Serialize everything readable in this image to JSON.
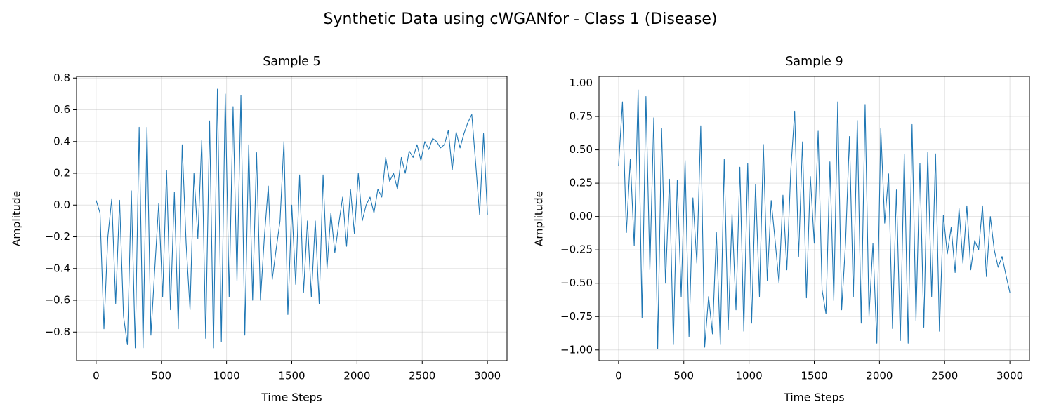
{
  "title": "Synthetic Data using cWGANfor - Class 1 (Disease)",
  "chart_data": [
    {
      "type": "line",
      "title": "Sample 5",
      "xlabel": "Time Steps",
      "ylabel": "Amplitude",
      "grid": true,
      "xlim": [
        -150,
        3150
      ],
      "ylim": [
        -0.98,
        0.81
      ],
      "xticks": [
        0,
        500,
        1000,
        1500,
        2000,
        2500,
        3000
      ],
      "yticks": [
        {
          "value": -0.8,
          "label": "−0.8"
        },
        {
          "value": -0.6,
          "label": "−0.6"
        },
        {
          "value": -0.4,
          "label": "−0.4"
        },
        {
          "value": -0.2,
          "label": "−0.2"
        },
        {
          "value": 0.0,
          "label": "0.0"
        },
        {
          "value": 0.2,
          "label": "0.2"
        },
        {
          "value": 0.4,
          "label": "0.4"
        },
        {
          "value": 0.6,
          "label": "0.6"
        },
        {
          "value": 0.8,
          "label": "0.8"
        }
      ],
      "x": [
        0,
        30,
        60,
        90,
        120,
        150,
        180,
        210,
        240,
        270,
        300,
        330,
        360,
        390,
        420,
        450,
        480,
        510,
        540,
        570,
        600,
        630,
        660,
        690,
        720,
        750,
        780,
        810,
        840,
        870,
        900,
        930,
        960,
        990,
        1020,
        1050,
        1080,
        1110,
        1140,
        1170,
        1200,
        1230,
        1260,
        1290,
        1320,
        1350,
        1380,
        1410,
        1440,
        1470,
        1500,
        1530,
        1560,
        1590,
        1620,
        1650,
        1680,
        1710,
        1740,
        1770,
        1800,
        1830,
        1860,
        1890,
        1920,
        1950,
        1980,
        2010,
        2040,
        2070,
        2100,
        2130,
        2160,
        2190,
        2220,
        2250,
        2280,
        2310,
        2340,
        2370,
        2400,
        2430,
        2460,
        2490,
        2520,
        2550,
        2580,
        2610,
        2640,
        2670,
        2700,
        2730,
        2760,
        2790,
        2820,
        2850,
        2880,
        2910,
        2940,
        2970,
        3000
      ],
      "series": [
        {
          "color": "#1f77b4",
          "values": [
            0.03,
            -0.05,
            -0.78,
            -0.2,
            0.04,
            -0.62,
            0.03,
            -0.7,
            -0.88,
            0.09,
            -0.9,
            0.49,
            -0.9,
            0.49,
            -0.82,
            -0.4,
            0.01,
            -0.58,
            0.22,
            -0.66,
            0.08,
            -0.78,
            0.38,
            -0.24,
            -0.66,
            0.2,
            -0.21,
            0.41,
            -0.84,
            0.53,
            -0.9,
            0.73,
            -0.86,
            0.7,
            -0.58,
            0.62,
            -0.48,
            0.69,
            -0.82,
            0.38,
            -0.6,
            0.33,
            -0.6,
            -0.2,
            0.12,
            -0.47,
            -0.28,
            -0.1,
            0.4,
            -0.69,
            0.0,
            -0.5,
            0.19,
            -0.55,
            -0.1,
            -0.58,
            -0.1,
            -0.62,
            0.19,
            -0.4,
            -0.05,
            -0.3,
            -0.12,
            0.05,
            -0.26,
            0.1,
            -0.18,
            0.2,
            -0.1,
            0.0,
            0.05,
            -0.05,
            0.1,
            0.05,
            0.3,
            0.15,
            0.2,
            0.1,
            0.3,
            0.2,
            0.34,
            0.3,
            0.38,
            0.28,
            0.4,
            0.35,
            0.42,
            0.4,
            0.36,
            0.38,
            0.47,
            0.22,
            0.46,
            0.36,
            0.45,
            0.52,
            0.57,
            0.26,
            -0.06,
            0.45,
            -0.06
          ]
        }
      ]
    },
    {
      "type": "line",
      "title": "Sample 9",
      "xlabel": "Time Steps",
      "ylabel": "Amplitude",
      "grid": true,
      "xlim": [
        -150,
        3150
      ],
      "ylim": [
        -1.08,
        1.05
      ],
      "xticks": [
        0,
        500,
        1000,
        1500,
        2000,
        2500,
        3000
      ],
      "yticks": [
        {
          "value": -1.0,
          "label": "−1.00"
        },
        {
          "value": -0.75,
          "label": "−0.75"
        },
        {
          "value": -0.5,
          "label": "−0.50"
        },
        {
          "value": -0.25,
          "label": "−0.25"
        },
        {
          "value": 0.0,
          "label": "0.00"
        },
        {
          "value": 0.25,
          "label": "0.25"
        },
        {
          "value": 0.5,
          "label": "0.50"
        },
        {
          "value": 0.75,
          "label": "0.75"
        },
        {
          "value": 1.0,
          "label": "1.00"
        }
      ],
      "x": [
        0,
        30,
        60,
        90,
        120,
        150,
        180,
        210,
        240,
        270,
        300,
        330,
        360,
        390,
        420,
        450,
        480,
        510,
        540,
        570,
        600,
        630,
        660,
        690,
        720,
        750,
        780,
        810,
        840,
        870,
        900,
        930,
        960,
        990,
        1020,
        1050,
        1080,
        1110,
        1140,
        1170,
        1200,
        1230,
        1260,
        1290,
        1320,
        1350,
        1380,
        1410,
        1440,
        1470,
        1500,
        1530,
        1560,
        1590,
        1620,
        1650,
        1680,
        1710,
        1740,
        1770,
        1800,
        1830,
        1860,
        1890,
        1920,
        1950,
        1980,
        2010,
        2040,
        2070,
        2100,
        2130,
        2160,
        2190,
        2220,
        2250,
        2280,
        2310,
        2340,
        2370,
        2400,
        2430,
        2460,
        2490,
        2520,
        2550,
        2580,
        2610,
        2640,
        2670,
        2700,
        2730,
        2760,
        2790,
        2820,
        2850,
        2880,
        2910,
        2940,
        2970,
        3000
      ],
      "series": [
        {
          "color": "#1f77b4",
          "values": [
            0.38,
            0.86,
            -0.12,
            0.43,
            -0.22,
            0.95,
            -0.76,
            0.9,
            -0.4,
            0.74,
            -0.99,
            0.66,
            -0.5,
            0.28,
            -0.96,
            0.27,
            -0.6,
            0.42,
            -0.9,
            0.14,
            -0.35,
            0.68,
            -0.98,
            -0.6,
            -0.88,
            -0.12,
            -0.96,
            0.43,
            -0.85,
            0.02,
            -0.7,
            0.37,
            -0.86,
            0.4,
            -0.8,
            0.24,
            -0.6,
            0.54,
            -0.48,
            0.12,
            -0.18,
            -0.5,
            0.16,
            -0.4,
            0.34,
            0.79,
            -0.3,
            0.56,
            -0.61,
            0.3,
            -0.2,
            0.64,
            -0.55,
            -0.73,
            0.41,
            -0.63,
            0.86,
            -0.7,
            -0.2,
            0.6,
            -0.6,
            0.72,
            -0.8,
            0.84,
            -0.75,
            -0.2,
            -0.95,
            0.66,
            -0.05,
            0.32,
            -0.84,
            0.2,
            -0.93,
            0.47,
            -0.95,
            0.69,
            -0.78,
            0.4,
            -0.83,
            0.48,
            -0.6,
            0.47,
            -0.86,
            0.01,
            -0.28,
            -0.08,
            -0.42,
            0.06,
            -0.35,
            0.08,
            -0.4,
            -0.18,
            -0.25,
            0.08,
            -0.45,
            0.0,
            -0.25,
            -0.38,
            -0.3,
            -0.44,
            -0.57
          ]
        }
      ]
    }
  ]
}
